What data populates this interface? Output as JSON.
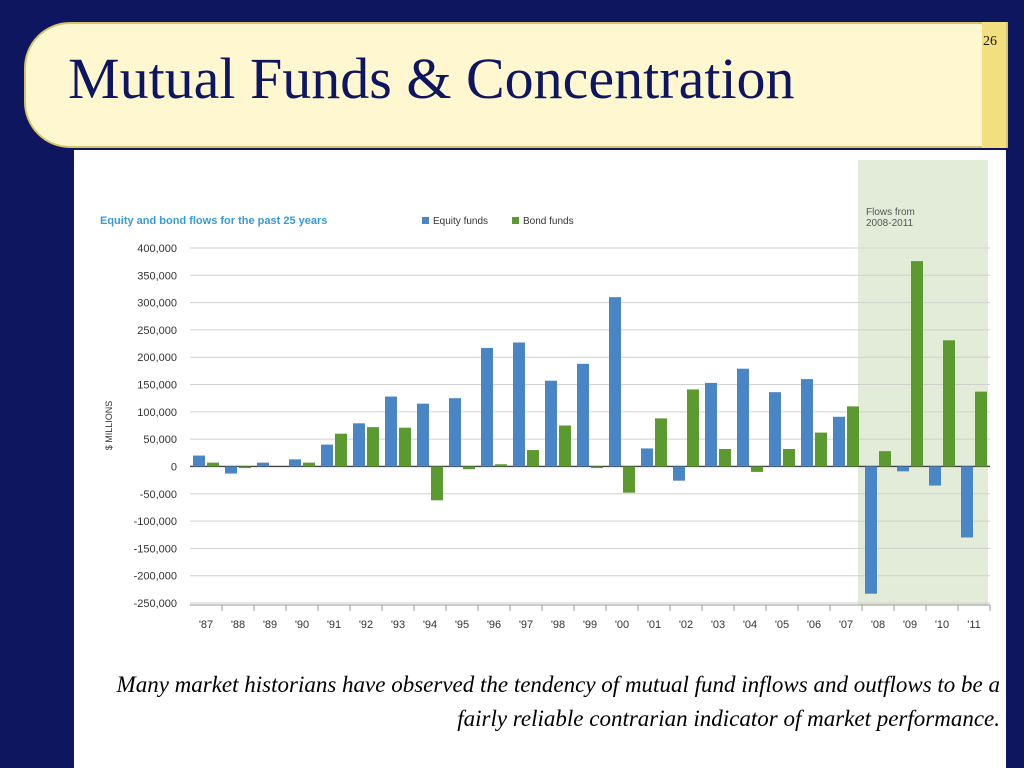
{
  "slide": {
    "title": "Mutual Funds & Concentration",
    "number": "26",
    "caption": "Many market historians have observed the tendency of mutual fund inflows and outflows to be a fairly reliable contrarian indicator of market performance."
  },
  "colors": {
    "equity": "#4a86c5",
    "bond": "#5b9a2f",
    "title_text": "#0e1660",
    "frame": "#0e1660",
    "title_box": "#fff7cf",
    "highlight": "#e3ecd9",
    "chart_title": "#3a9ad9"
  },
  "chart_data": {
    "type": "bar",
    "title": "Equity and bond flows for the past 25 years",
    "ylabel": "$ MILLIONS",
    "legend": [
      "Equity funds",
      "Bond funds"
    ],
    "legend_position": "top",
    "grid": true,
    "ylim": [
      -250000,
      400000
    ],
    "yticks": [
      "400,000",
      "350,000",
      "300,000",
      "250,000",
      "200,000",
      "150,000",
      "100,000",
      "50,000",
      "0",
      "-50,000",
      "-100,000",
      "-150,000",
      "-200,000",
      "-250,000"
    ],
    "categories": [
      "'87",
      "'88",
      "'89",
      "'90",
      "'91",
      "'92",
      "'93",
      "'94",
      "'95",
      "'96",
      "'97",
      "'98",
      "'99",
      "'00",
      "'01",
      "'02",
      "'03",
      "'04",
      "'05",
      "'06",
      "'07",
      "'08",
      "'09",
      "'10",
      "'11"
    ],
    "series": [
      {
        "name": "Equity funds",
        "values": [
          20000,
          -13000,
          7000,
          13000,
          40000,
          79000,
          128000,
          115000,
          125000,
          217000,
          227000,
          157000,
          188000,
          310000,
          33000,
          -26000,
          153000,
          179000,
          136000,
          160000,
          91000,
          -233000,
          -9000,
          -35000,
          -130000
        ]
      },
      {
        "name": "Bond funds",
        "values": [
          7000,
          -3000,
          0,
          7000,
          60000,
          72000,
          71000,
          -62000,
          -5000,
          4000,
          30000,
          75000,
          -3000,
          -48000,
          88000,
          141000,
          32000,
          -10000,
          32000,
          62000,
          110000,
          28000,
          376000,
          231000,
          137000
        ]
      }
    ],
    "annotation": {
      "text_lines": [
        "Flows from",
        "2008-2011"
      ],
      "from_category": "'08",
      "to_category": "'11"
    }
  }
}
